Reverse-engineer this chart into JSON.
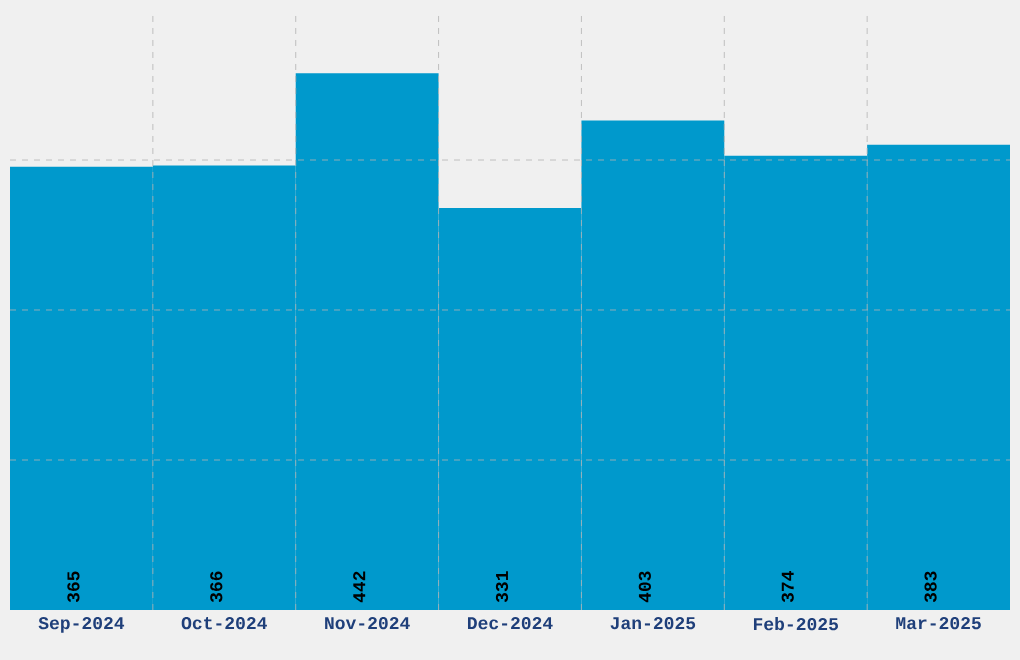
{
  "chart_data": {
    "type": "bar",
    "categories": [
      "Sep-2024",
      "Oct-2024",
      "Nov-2024",
      "Dec-2024",
      "Jan-2025",
      "Feb-2025",
      "Mar-2025"
    ],
    "values": [
      365,
      366,
      442,
      331,
      403,
      374,
      383
    ],
    "color": "#0099cc",
    "ylim": [
      0,
      494
    ],
    "yticks": [
      {
        "value": 123.5,
        "label": null
      },
      {
        "value": 247,
        "label": null
      },
      {
        "value": 370.5,
        "label": null
      }
    ],
    "tick_labels": "x",
    "grid": true,
    "data_labels": true
  }
}
